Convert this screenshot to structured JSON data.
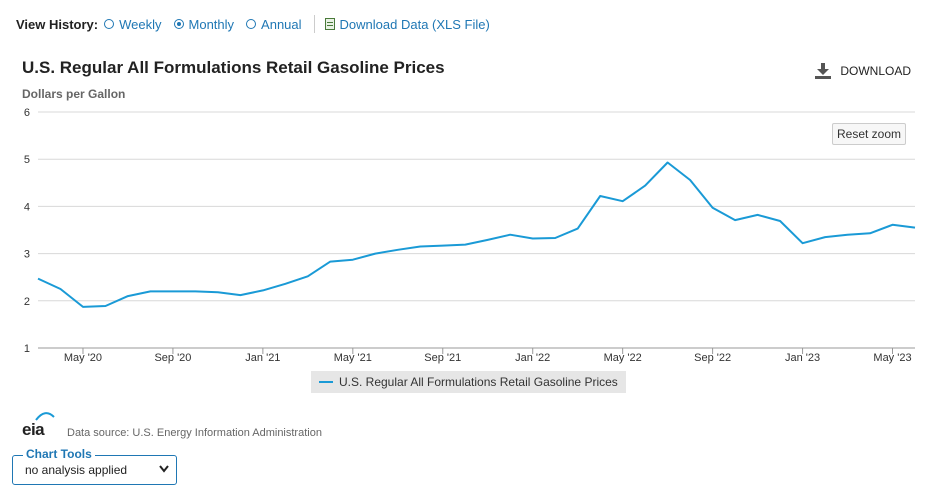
{
  "history": {
    "label": "View History:",
    "options": [
      {
        "label": "Weekly",
        "checked": false
      },
      {
        "label": "Monthly",
        "checked": true
      },
      {
        "label": "Annual",
        "checked": false
      }
    ],
    "download_link": "Download Data (XLS File)"
  },
  "header": {
    "download_label": "DOWNLOAD",
    "reset_zoom_label": "Reset zoom"
  },
  "chart_data": {
    "type": "line",
    "title": "U.S. Regular All Formulations Retail Gasoline Prices",
    "ylabel": "Dollars per Gallon",
    "ylim": [
      1,
      6
    ],
    "yticks": [
      1,
      2,
      3,
      4,
      5,
      6
    ],
    "grid": true,
    "legend_position": "bottom-center",
    "x_tick_labels": [
      "May '20",
      "Sep '20",
      "Jan '21",
      "May '21",
      "Sep '21",
      "Jan '22",
      "May '22",
      "Sep '22",
      "Jan '23",
      "May '23"
    ],
    "x": [
      "2020-03",
      "2020-04",
      "2020-05",
      "2020-06",
      "2020-07",
      "2020-08",
      "2020-09",
      "2020-10",
      "2020-11",
      "2020-12",
      "2021-01",
      "2021-02",
      "2021-03",
      "2021-04",
      "2021-05",
      "2021-06",
      "2021-07",
      "2021-08",
      "2021-09",
      "2021-10",
      "2021-11",
      "2021-12",
      "2022-01",
      "2022-02",
      "2022-03",
      "2022-04",
      "2022-05",
      "2022-06",
      "2022-07",
      "2022-08",
      "2022-09",
      "2022-10",
      "2022-11",
      "2022-12",
      "2023-01",
      "2023-02",
      "2023-03",
      "2023-04",
      "2023-05",
      "2023-06"
    ],
    "series": [
      {
        "name": "U.S. Regular All Formulations Retail Gasoline Prices",
        "color": "#1a9ad6",
        "values": [
          2.47,
          2.25,
          1.87,
          1.89,
          2.1,
          2.2,
          2.2,
          2.2,
          2.18,
          2.12,
          2.22,
          2.36,
          2.52,
          2.83,
          2.87,
          3.0,
          3.08,
          3.15,
          3.17,
          3.19,
          3.29,
          3.4,
          3.32,
          3.33,
          3.53,
          4.22,
          4.11,
          4.44,
          4.93,
          4.56,
          3.97,
          3.71,
          3.82,
          3.69,
          3.22,
          3.35,
          3.4,
          3.43,
          3.61,
          3.55
        ]
      }
    ]
  },
  "footer": {
    "logo_text": "eia",
    "data_source": "Data source: U.S. Energy Information Administration",
    "chart_tools_label": "Chart Tools",
    "chart_tools_value": "no analysis applied"
  }
}
